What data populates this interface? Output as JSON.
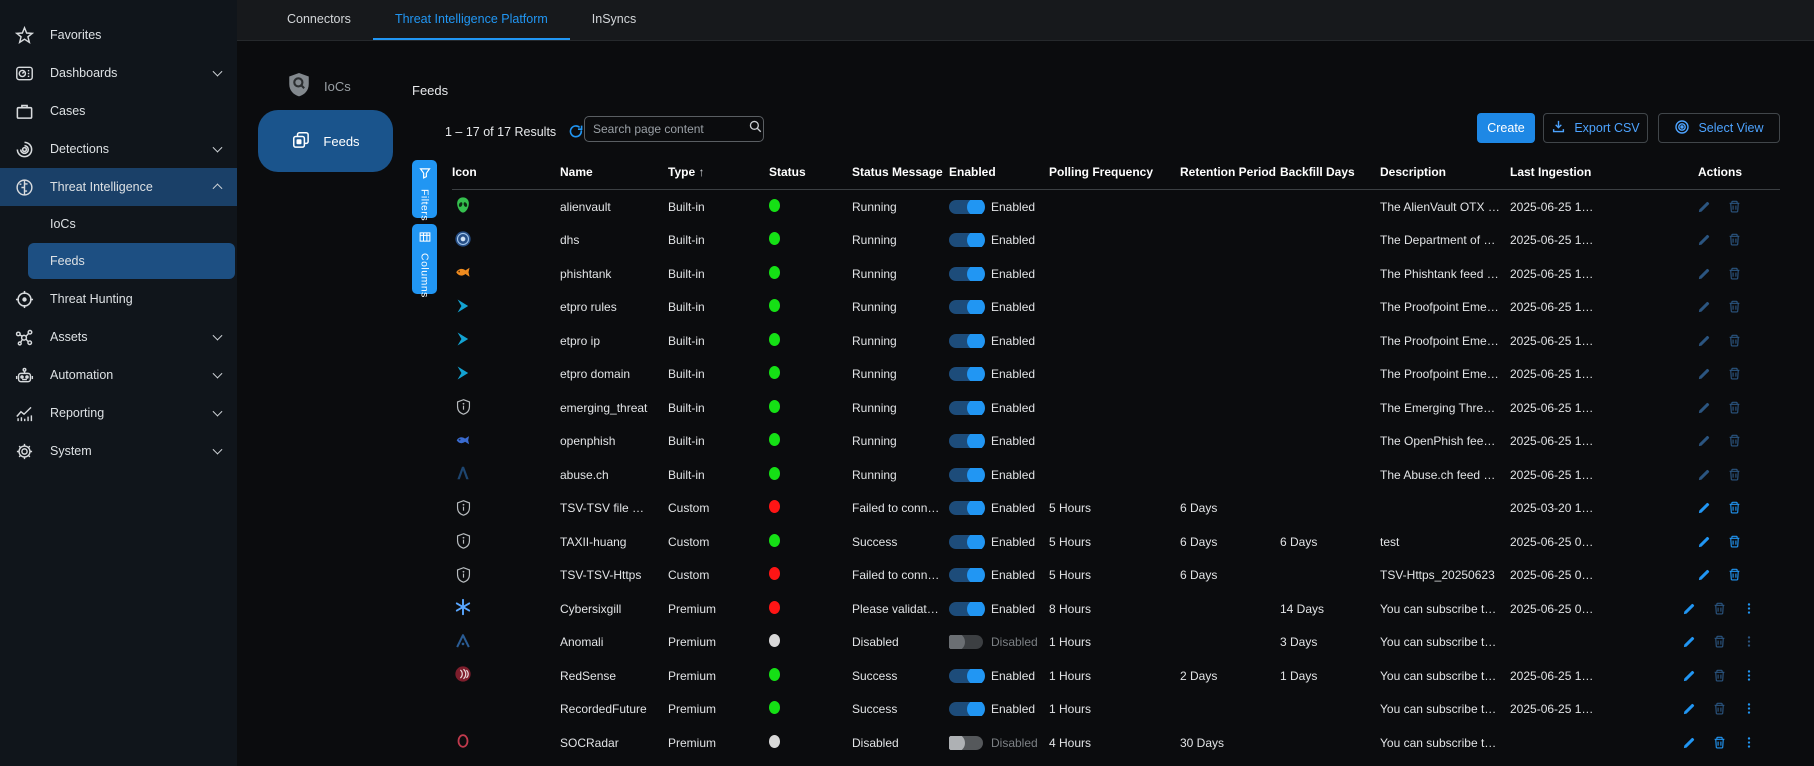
{
  "colors": {
    "accent": "#2196f3",
    "status_green": "#15e015",
    "status_red": "#ff1515",
    "status_gray": "#d8d8d8"
  },
  "sidebar": {
    "items": [
      {
        "label": "Favorites",
        "icon": "star-icon",
        "expandable": false,
        "selected": false
      },
      {
        "label": "Dashboards",
        "icon": "dashboard-icon",
        "expandable": true,
        "selected": false
      },
      {
        "label": "Cases",
        "icon": "briefcase-icon",
        "expandable": false,
        "selected": false
      },
      {
        "label": "Detections",
        "icon": "detections-icon",
        "expandable": true,
        "selected": false
      },
      {
        "label": "Threat Intelligence",
        "icon": "brain-icon",
        "expandable": true,
        "expanded": true,
        "selected": true,
        "children": [
          {
            "label": "IoCs",
            "selected": false
          },
          {
            "label": "Feeds",
            "selected": true
          }
        ]
      },
      {
        "label": "Threat Hunting",
        "icon": "crosshair-icon",
        "expandable": false,
        "selected": false
      },
      {
        "label": "Assets",
        "icon": "network-icon",
        "expandable": true,
        "selected": false
      },
      {
        "label": "Automation",
        "icon": "robot-icon",
        "expandable": true,
        "selected": false
      },
      {
        "label": "Reporting",
        "icon": "report-chart-icon",
        "expandable": true,
        "selected": false
      },
      {
        "label": "System",
        "icon": "gear-icon",
        "expandable": true,
        "selected": false
      }
    ]
  },
  "tabs": [
    {
      "label": "Connectors",
      "active": false
    },
    {
      "label": "Threat Intelligence Platform",
      "active": true
    },
    {
      "label": "InSyncs",
      "active": false
    }
  ],
  "subnav": {
    "iocs_label": "IoCs",
    "feeds_label": "Feeds"
  },
  "page": {
    "title": "Feeds",
    "results_text": "1 – 17 of 17 Results",
    "search_placeholder": "Search page content"
  },
  "toolbar": {
    "create_label": "Create",
    "export_label": "Export CSV",
    "select_view_label": "Select View"
  },
  "side_tabs": {
    "filters_label": "Filters",
    "columns_label": "Columns"
  },
  "table": {
    "columns": [
      {
        "key": "icon",
        "label": "Icon",
        "sorted": false
      },
      {
        "key": "name",
        "label": "Name",
        "sorted": false
      },
      {
        "key": "type",
        "label": "Type",
        "sorted": true,
        "sort_dir": "asc"
      },
      {
        "key": "status",
        "label": "Status",
        "sorted": false
      },
      {
        "key": "status_message",
        "label": "Status Message",
        "sorted": false
      },
      {
        "key": "enabled",
        "label": "Enabled",
        "sorted": false
      },
      {
        "key": "polling",
        "label": "Polling Frequency",
        "sorted": false
      },
      {
        "key": "retention",
        "label": "Retention Period",
        "sorted": false
      },
      {
        "key": "backfill",
        "label": "Backfill Days",
        "sorted": false
      },
      {
        "key": "description",
        "label": "Description",
        "sorted": false
      },
      {
        "key": "last_ingestion",
        "label": "Last Ingestion",
        "sorted": false
      },
      {
        "key": "actions",
        "label": "Actions",
        "sorted": false
      }
    ],
    "rows": [
      {
        "icon": "alien-icon",
        "name": "alienvault",
        "type": "Built-in",
        "status": "green",
        "status_message": "Running",
        "toggle": "on",
        "enabled_label": "Enabled",
        "polling": "",
        "retention": "",
        "backfill": "",
        "description": "The AlienVault OTX …",
        "last_ingestion": "2025-06-25 1…",
        "actions": {
          "edit": "dim",
          "delete": "dim",
          "menu": "none"
        }
      },
      {
        "icon": "dhs-icon",
        "name": "dhs",
        "type": "Built-in",
        "status": "green",
        "status_message": "Running",
        "toggle": "on",
        "enabled_label": "Enabled",
        "polling": "",
        "retention": "",
        "backfill": "",
        "description": "The Department of …",
        "last_ingestion": "2025-06-25 1…",
        "actions": {
          "edit": "dim",
          "delete": "dim",
          "menu": "none"
        }
      },
      {
        "icon": "phishtank-fish-icon",
        "name": "phishtank",
        "type": "Built-in",
        "status": "green",
        "status_message": "Running",
        "toggle": "on",
        "enabled_label": "Enabled",
        "polling": "",
        "retention": "",
        "backfill": "",
        "description": "The Phishtank feed …",
        "last_ingestion": "2025-06-25 1…",
        "actions": {
          "edit": "dim",
          "delete": "dim",
          "menu": "none"
        }
      },
      {
        "icon": "proofpoint-chevron-icon",
        "name": "etpro rules",
        "type": "Built-in",
        "status": "green",
        "status_message": "Running",
        "toggle": "on",
        "enabled_label": "Enabled",
        "polling": "",
        "retention": "",
        "backfill": "",
        "description": "The Proofpoint Eme…",
        "last_ingestion": "2025-06-25 1…",
        "actions": {
          "edit": "dim",
          "delete": "dim",
          "menu": "none"
        }
      },
      {
        "icon": "proofpoint-chevron-icon",
        "name": "etpro ip",
        "type": "Built-in",
        "status": "green",
        "status_message": "Running",
        "toggle": "on",
        "enabled_label": "Enabled",
        "polling": "",
        "retention": "",
        "backfill": "",
        "description": "The Proofpoint Eme…",
        "last_ingestion": "2025-06-25 1…",
        "actions": {
          "edit": "dim",
          "delete": "dim",
          "menu": "none"
        }
      },
      {
        "icon": "proofpoint-chevron-icon",
        "name": "etpro domain",
        "type": "Built-in",
        "status": "green",
        "status_message": "Running",
        "toggle": "on",
        "enabled_label": "Enabled",
        "polling": "",
        "retention": "",
        "backfill": "",
        "description": "The Proofpoint Eme…",
        "last_ingestion": "2025-06-25 1…",
        "actions": {
          "edit": "dim",
          "delete": "dim",
          "menu": "none"
        }
      },
      {
        "icon": "shield-icon",
        "name": "emerging_threat",
        "type": "Built-in",
        "status": "green",
        "status_message": "Running",
        "toggle": "on",
        "enabled_label": "Enabled",
        "polling": "",
        "retention": "",
        "backfill": "",
        "description": "The Emerging Thre…",
        "last_ingestion": "2025-06-25 1…",
        "actions": {
          "edit": "dim",
          "delete": "dim",
          "menu": "none"
        }
      },
      {
        "icon": "openphish-fish-icon",
        "name": "openphish",
        "type": "Built-in",
        "status": "green",
        "status_message": "Running",
        "toggle": "on",
        "enabled_label": "Enabled",
        "polling": "",
        "retention": "",
        "backfill": "",
        "description": "The OpenPhish fee…",
        "last_ingestion": "2025-06-25 1…",
        "actions": {
          "edit": "dim",
          "delete": "dim",
          "menu": "none"
        }
      },
      {
        "icon": "abusech-lambda-icon",
        "name": "abuse.ch",
        "type": "Built-in",
        "status": "green",
        "status_message": "Running",
        "toggle": "on",
        "enabled_label": "Enabled",
        "polling": "",
        "retention": "",
        "backfill": "",
        "description": "The Abuse.ch feed …",
        "last_ingestion": "2025-06-25 1…",
        "actions": {
          "edit": "dim",
          "delete": "dim",
          "menu": "none"
        }
      },
      {
        "icon": "shield-icon",
        "name": "TSV-TSV file …",
        "type": "Custom",
        "status": "red",
        "status_message": "Failed to conn…",
        "toggle": "on",
        "enabled_label": "Enabled",
        "polling": "5 Hours",
        "retention": "6 Days",
        "backfill": "",
        "description": "",
        "last_ingestion": "2025-03-20 1…",
        "actions": {
          "edit": "bright",
          "delete": "bright",
          "menu": "none"
        }
      },
      {
        "icon": "shield-icon",
        "name": "TAXII-huang",
        "type": "Custom",
        "status": "green",
        "status_message": "Success",
        "toggle": "on",
        "enabled_label": "Enabled",
        "polling": "5 Hours",
        "retention": "6 Days",
        "backfill": "6 Days",
        "description": "test",
        "last_ingestion": "2025-06-25 0…",
        "actions": {
          "edit": "bright",
          "delete": "bright",
          "menu": "none"
        }
      },
      {
        "icon": "shield-icon",
        "name": "TSV-TSV-Https",
        "type": "Custom",
        "status": "red",
        "status_message": "Failed to conn…",
        "toggle": "on",
        "enabled_label": "Enabled",
        "polling": "5 Hours",
        "retention": "6 Days",
        "backfill": "",
        "description": "TSV-Https_20250623",
        "last_ingestion": "2025-06-25 0…",
        "actions": {
          "edit": "bright",
          "delete": "bright",
          "menu": "none"
        }
      },
      {
        "icon": "cybersixgill-asterisk-icon",
        "name": "Cybersixgill",
        "type": "Premium",
        "status": "red",
        "status_message": "Please validat…",
        "toggle": "on",
        "enabled_label": "Enabled",
        "polling": "8 Hours",
        "retention": "",
        "backfill": "14 Days",
        "description": "You can subscribe t…",
        "last_ingestion": "2025-06-25 0…",
        "actions": {
          "edit": "bright",
          "delete": "dim",
          "menu": "bright"
        }
      },
      {
        "icon": "anomali-a-icon",
        "name": "Anomali",
        "type": "Premium",
        "status": "gray",
        "status_message": "Disabled",
        "toggle": "off",
        "enabled_label": "Disabled",
        "polling": "1 Hours",
        "retention": "",
        "backfill": "3 Days",
        "description": "You can subscribe t…",
        "last_ingestion": "",
        "actions": {
          "edit": "bright",
          "delete": "dim",
          "menu": "dim"
        }
      },
      {
        "icon": "redsense-icon",
        "name": "RedSense",
        "type": "Premium",
        "status": "green",
        "status_message": "Success",
        "toggle": "on",
        "enabled_label": "Enabled",
        "polling": "1 Hours",
        "retention": "2 Days",
        "backfill": "1 Days",
        "description": "You can subscribe t…",
        "last_ingestion": "2025-06-25 1…",
        "actions": {
          "edit": "bright",
          "delete": "dim",
          "menu": "bright"
        }
      },
      {
        "icon": "none",
        "name": "RecordedFuture",
        "type": "Premium",
        "status": "green",
        "status_message": "Success",
        "toggle": "on",
        "enabled_label": "Enabled",
        "polling": "1 Hours",
        "retention": "",
        "backfill": "",
        "description": "You can subscribe t…",
        "last_ingestion": "2025-06-25 1…",
        "actions": {
          "edit": "bright",
          "delete": "dim",
          "menu": "bright"
        }
      },
      {
        "icon": "socradar-ring-icon",
        "name": "SOCRadar",
        "type": "Premium",
        "status": "gray",
        "status_message": "Disabled",
        "toggle": "off-light",
        "enabled_label": "Disabled",
        "polling": "4 Hours",
        "retention": "30 Days",
        "backfill": "",
        "description": "You can subscribe t…",
        "last_ingestion": "",
        "actions": {
          "edit": "bright",
          "delete": "bright",
          "menu": "bright"
        }
      }
    ]
  }
}
